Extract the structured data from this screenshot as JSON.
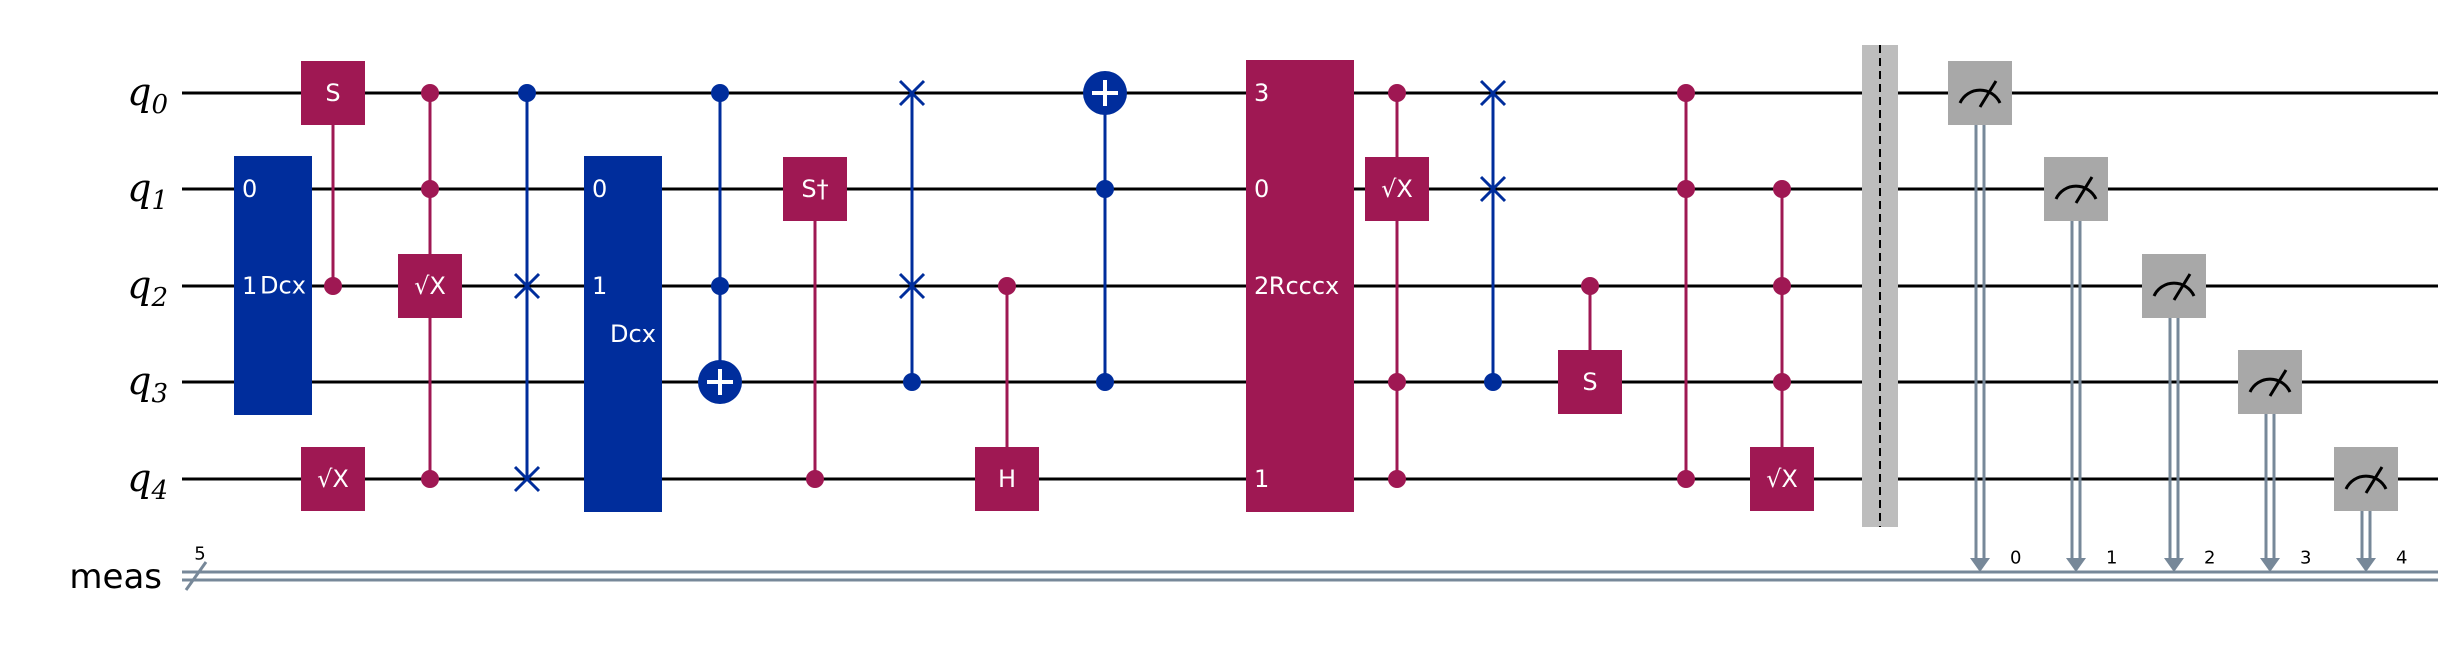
{
  "qubits": [
    {
      "name": "q",
      "index": "0"
    },
    {
      "name": "q",
      "index": "1"
    },
    {
      "name": "q",
      "index": "2"
    },
    {
      "name": "q",
      "index": "3"
    },
    {
      "name": "q",
      "index": "4"
    }
  ],
  "classical": {
    "name": "meas",
    "width": "5",
    "bits": [
      "0",
      "1",
      "2",
      "3",
      "4"
    ]
  },
  "colors": {
    "wire": "#000000",
    "classical": "#778899",
    "blue": "#002d9c",
    "magenta": "#9f1853",
    "gray": "#a8a8a8",
    "barrier": "#bdbdbd"
  },
  "gates": [
    {
      "type": "multibox",
      "label": "Dcx",
      "color": "blue",
      "col": 0,
      "qubits": [
        1,
        3
      ],
      "port_labels": [
        "0",
        "1"
      ]
    },
    {
      "type": "controlled",
      "label": "S",
      "color": "magenta",
      "col": 1,
      "controls": [
        2
      ],
      "targets": [
        0
      ]
    },
    {
      "type": "box",
      "label": "√X",
      "color": "magenta",
      "col": 1,
      "qubits": [
        4
      ]
    },
    {
      "type": "controlled",
      "label": "√X",
      "color": "magenta",
      "col": 2,
      "controls": [
        0,
        1,
        4
      ],
      "targets": [
        2
      ]
    },
    {
      "type": "cswap",
      "color": "blue",
      "col": 3,
      "controls": [
        0
      ],
      "swaps": [
        2,
        4
      ]
    },
    {
      "type": "multibox",
      "label": "Dcx",
      "color": "blue",
      "col": 4,
      "qubits": [
        1,
        4
      ],
      "port_labels": [
        "0",
        "1"
      ]
    },
    {
      "type": "cnot",
      "color": "blue",
      "col": 5,
      "controls": [
        0,
        2
      ],
      "target": 3
    },
    {
      "type": "controlled",
      "label": "S†",
      "color": "magenta",
      "col": 6,
      "controls": [
        4
      ],
      "targets": [
        1
      ]
    },
    {
      "type": "cswap",
      "color": "blue",
      "col": 7,
      "controls": [
        3
      ],
      "swaps": [
        0,
        2
      ]
    },
    {
      "type": "controlled",
      "label": "H",
      "color": "magenta",
      "col": 8,
      "controls": [
        2
      ],
      "targets": [
        4
      ]
    },
    {
      "type": "cnot",
      "color": "blue",
      "col": 9,
      "controls": [
        1,
        3
      ],
      "target": 0
    },
    {
      "type": "multibox",
      "label": "Rcccx",
      "color": "magenta",
      "col": 10,
      "qubits": [
        0,
        4
      ],
      "port_labels": [
        "3",
        "0",
        "2",
        "",
        "1"
      ]
    },
    {
      "type": "controlled",
      "label": "√X",
      "color": "magenta",
      "col": 11,
      "controls": [
        0,
        3,
        4
      ],
      "targets": [
        1
      ]
    },
    {
      "type": "cswap",
      "color": "blue",
      "col": 12,
      "controls": [
        3
      ],
      "swaps": [
        0,
        1
      ]
    },
    {
      "type": "controlled",
      "label": "S",
      "color": "magenta",
      "col": 13,
      "controls": [
        2
      ],
      "targets": [
        3
      ]
    },
    {
      "type": "multicontrol",
      "color": "magenta",
      "col": 14,
      "controls": [
        0,
        1,
        4
      ]
    },
    {
      "type": "controlled",
      "label": "√X",
      "color": "magenta",
      "col": 15,
      "controls": [
        1,
        2,
        3
      ],
      "targets": [
        4
      ]
    },
    {
      "type": "barrier",
      "col": 16,
      "qubits": [
        0,
        4
      ]
    },
    {
      "type": "measure",
      "col": 17,
      "qubit": 0,
      "bit": 0
    },
    {
      "type": "measure",
      "col": 18,
      "qubit": 1,
      "bit": 1
    },
    {
      "type": "measure",
      "col": 19,
      "qubit": 2,
      "bit": 2
    },
    {
      "type": "measure",
      "col": 20,
      "qubit": 3,
      "bit": 3
    },
    {
      "type": "measure",
      "col": 21,
      "qubit": 4,
      "bit": 4
    }
  ]
}
